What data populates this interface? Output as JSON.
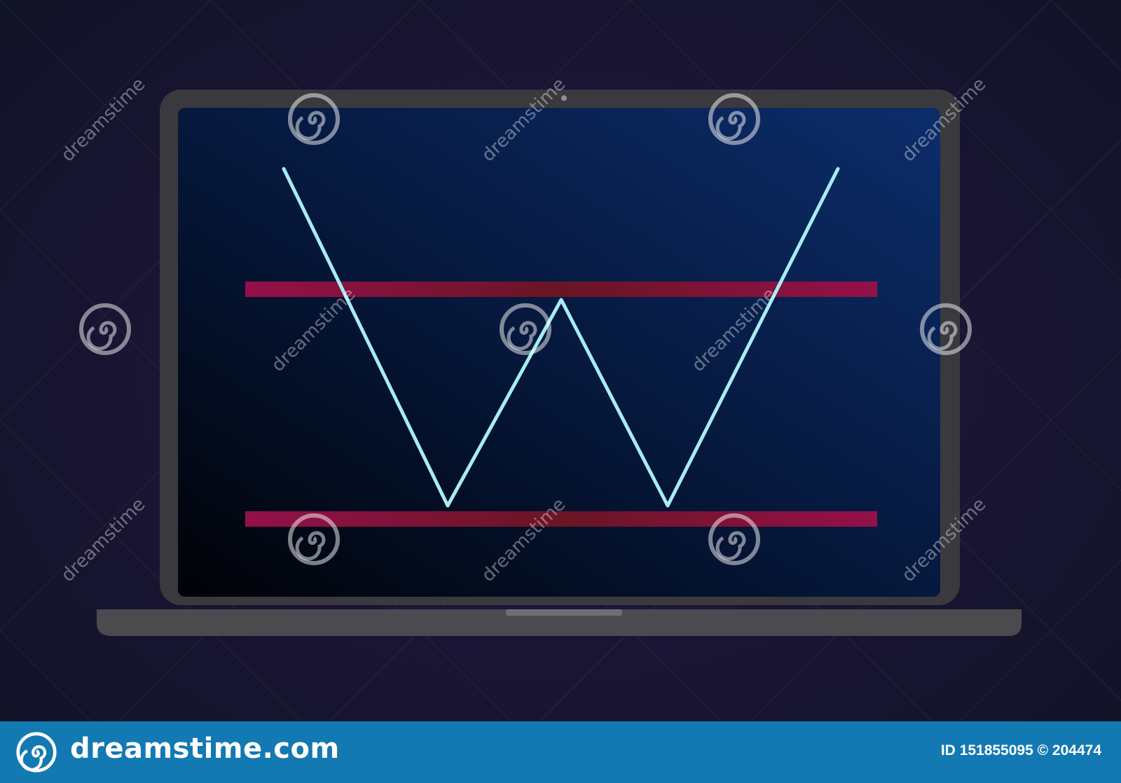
{
  "illustration": {
    "subject": "laptop-showing-double-bottom-pattern",
    "pattern": {
      "line_color": "#a6ecf4",
      "level_color": "#8e1246",
      "screen_top_color": "#0c2a66",
      "screen_bottom_color": "#02040c",
      "laptop_body_color": "#3a3a3e"
    }
  },
  "watermark": {
    "text": "dreamstime",
    "logo": "dreamstime-spiral-icon"
  },
  "footer": {
    "brand": "dreamstime.com",
    "brand_logo": "dreamstime-spiral-icon",
    "stock_id": "ID 151855095 © 204474",
    "background": "#1379b2"
  }
}
